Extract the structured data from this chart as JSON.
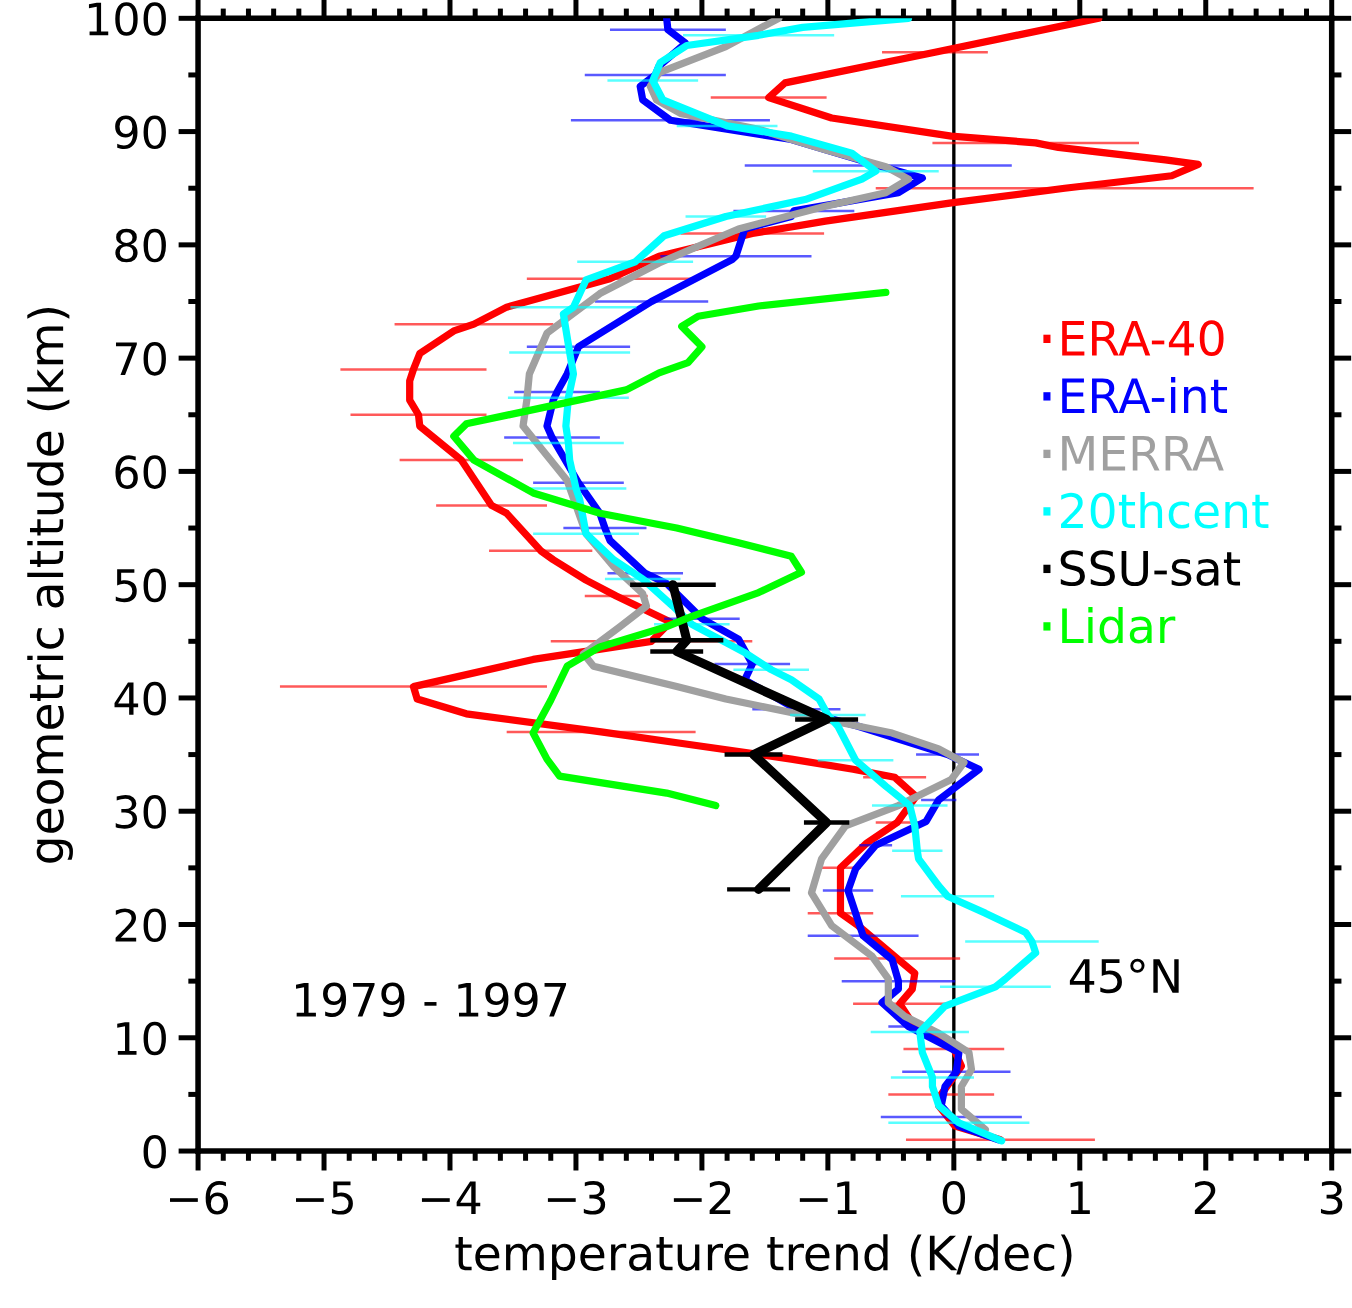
{
  "chart_data": {
    "type": "line",
    "xlabel": "temperature trend (K/dec)",
    "ylabel": "geometric altitude (km)",
    "annotations": [
      "1979 - 1997",
      "45°N"
    ],
    "xlim": [
      -6,
      3
    ],
    "ylim": [
      0,
      100
    ],
    "xticks": [
      -6,
      {
        "value": -5.8,
        "label": null
      },
      {
        "value": -5.6,
        "label": null
      },
      {
        "value": -5.4,
        "label": null
      },
      {
        "value": -5.2,
        "label": null
      },
      -5,
      {
        "value": -4.8,
        "label": null
      },
      {
        "value": -4.6,
        "label": null
      },
      {
        "value": -4.4,
        "label": null
      },
      {
        "value": -4.2,
        "label": null
      },
      -4,
      {
        "value": -3.8,
        "label": null
      },
      {
        "value": -3.6,
        "label": null
      },
      {
        "value": -3.4,
        "label": null
      },
      {
        "value": -3.2,
        "label": null
      },
      -3,
      {
        "value": -2.8,
        "label": null
      },
      {
        "value": -2.6,
        "label": null
      },
      {
        "value": -2.4,
        "label": null
      },
      {
        "value": -2.2,
        "label": null
      },
      -2,
      {
        "value": -1.8,
        "label": null
      },
      {
        "value": -1.6,
        "label": null
      },
      {
        "value": -1.4,
        "label": null
      },
      {
        "value": -1.2,
        "label": null
      },
      -1,
      {
        "value": -0.8,
        "label": null
      },
      {
        "value": -0.6,
        "label": null
      },
      {
        "value": -0.4,
        "label": null
      },
      {
        "value": -0.2,
        "label": null
      },
      0,
      {
        "value": 0.2,
        "label": null
      },
      {
        "value": 0.4,
        "label": null
      },
      {
        "value": 0.6,
        "label": null
      },
      {
        "value": 0.8,
        "label": null
      },
      1,
      {
        "value": 1.2,
        "label": null
      },
      {
        "value": 1.4,
        "label": null
      },
      {
        "value": 1.6,
        "label": null
      },
      {
        "value": 1.8,
        "label": null
      },
      2,
      {
        "value": 2.2,
        "label": null
      },
      {
        "value": 2.4,
        "label": null
      },
      {
        "value": 2.6,
        "label": null
      },
      {
        "value": 2.8,
        "label": null
      },
      3
    ],
    "yticks": [
      0,
      {
        "value": 5,
        "label": null
      },
      10,
      {
        "value": 15,
        "label": null
      },
      20,
      {
        "value": 25,
        "label": null
      },
      30,
      {
        "value": 35,
        "label": null
      },
      40,
      {
        "value": 45,
        "label": null
      },
      50,
      {
        "value": 55,
        "label": null
      },
      60,
      {
        "value": 65,
        "label": null
      },
      70,
      {
        "value": 75,
        "label": null
      },
      80,
      {
        "value": 85,
        "label": null
      },
      90,
      {
        "value": 95,
        "label": null
      },
      100
    ],
    "ref_lines": [
      {
        "axis": "x",
        "value": 0,
        "color": "#000000"
      }
    ],
    "legend": "right",
    "series": [
      {
        "name": "ERA-40",
        "color": "#ff0000",
        "x": [
          0.37,
          0.01,
          -0.12,
          -0.1,
          0.06,
          0.0,
          -0.33,
          -0.43,
          -0.33,
          -0.31,
          -0.45,
          -0.76,
          -0.9,
          -0.9,
          -0.69,
          -0.45,
          -0.3,
          -0.47,
          -0.8,
          -1.29,
          -2.17,
          -2.8,
          -3.87,
          -4.26,
          -4.29,
          -3.34,
          -2.4,
          -2.25,
          -2.68,
          -2.92,
          -3.18,
          -3.28,
          -3.55,
          -3.67,
          -3.91,
          -4.24,
          -4.25,
          -4.32,
          -4.32,
          -4.29,
          -4.24,
          -3.97,
          -3.81,
          -3.55,
          -2.73,
          -2.34,
          -1.6,
          -1.02,
          -0.02,
          0.88,
          1.73,
          1.94,
          1.68,
          0.83,
          0.65,
          -0.02,
          -0.97,
          -1.47,
          -1.34,
          -0.15,
          1.15
        ],
        "values": [
          1,
          2.2,
          4,
          5,
          7.5,
          9,
          11.3,
          13,
          14.3,
          15.7,
          17,
          19.9,
          21,
          25,
          27.2,
          29,
          31.3,
          33,
          33.7,
          34.6,
          36,
          37,
          38.6,
          39.9,
          41,
          43.4,
          45,
          46.7,
          49,
          50.4,
          52.2,
          53,
          56.3,
          57,
          61,
          64,
          65,
          66.3,
          68,
          69,
          70.4,
          72.4,
          73,
          74.5,
          77,
          79,
          81,
          82.1,
          83.7,
          85,
          86.1,
          87.1,
          87.5,
          88.6,
          89,
          89.6,
          91.2,
          93,
          94.3,
          97,
          100
        ],
        "xerrors": [
          0.75,
          null,
          null,
          0.42,
          null,
          0.4,
          null,
          0.37,
          null,
          null,
          0.5,
          null,
          0.26,
          0.16,
          null,
          0.17,
          null,
          0.25,
          null,
          null,
          null,
          0.75,
          null,
          null,
          1.06,
          null,
          0.8,
          null,
          0.25,
          null,
          null,
          0.41,
          null,
          0.44,
          0.49,
          null,
          0.54,
          null,
          null,
          0.58,
          null,
          null,
          0.63,
          null,
          0.66,
          null,
          0.57,
          null,
          null,
          1.5,
          null,
          null,
          null,
          null,
          0.82,
          null,
          null,
          0.46,
          null,
          0.42,
          null
        ]
      },
      {
        "name": "ERA-int",
        "color": "#0000ff",
        "x": [
          0.35,
          0.04,
          -0.02,
          -0.1,
          -0.07,
          0.02,
          0.04,
          -0.36,
          -0.57,
          -0.44,
          -0.44,
          -0.49,
          -0.72,
          -0.84,
          -0.78,
          -0.62,
          -0.22,
          -0.12,
          0.2,
          -0.05,
          -0.76,
          -1.25,
          -1.66,
          -1.6,
          -1.71,
          -2.0,
          -2.28,
          -2.45,
          -2.73,
          -2.77,
          -2.81,
          -2.98,
          -3.19,
          -3.23,
          -3.18,
          -3.15,
          -3.07,
          -2.98,
          -2.4,
          -1.76,
          -1.73,
          -1.66,
          -1.29,
          -1.27,
          -0.44,
          -0.25,
          -0.6,
          -1.29,
          -2.25,
          -2.47,
          -2.49,
          -2.37,
          -2.34,
          -2.13,
          -2.27,
          -2.28
        ],
        "values": [
          1,
          2.2,
          3,
          4,
          5.7,
          7,
          8.7,
          11,
          13.1,
          14.3,
          15,
          16.9,
          19,
          23,
          24.9,
          27,
          29.1,
          31,
          33.7,
          35,
          37.5,
          39,
          41.6,
          43,
          45.2,
          47,
          50.1,
          51,
          53.9,
          55,
          56.3,
          59,
          63,
          64,
          66.3,
          67,
          68.6,
          71,
          75,
          78.7,
          79,
          81.4,
          82.5,
          83,
          84.6,
          85.9,
          87,
          89.3,
          91,
          92.8,
          94,
          95,
          95.8,
          97.8,
          99,
          100
        ],
        "xerrors": [
          null,
          null,
          0.56,
          null,
          null,
          0.43,
          null,
          0.16,
          null,
          null,
          0.45,
          null,
          0.44,
          0.2,
          null,
          0.13,
          null,
          0.14,
          null,
          0.25,
          null,
          0.35,
          null,
          0.3,
          null,
          0.3,
          null,
          0.3,
          null,
          0.33,
          null,
          0.36,
          0.38,
          null,
          null,
          0.34,
          null,
          0.41,
          0.45,
          null,
          0.6,
          null,
          null,
          0.48,
          null,
          null,
          1.06,
          null,
          0.79,
          null,
          null,
          0.56,
          null,
          null,
          0.46,
          null
        ]
      },
      {
        "name": "MERRA",
        "color": "#a0a0a0",
        "x": [
          0.25,
          0.06,
          0.06,
          0.14,
          0.12,
          -0.12,
          -0.39,
          -0.52,
          -0.52,
          -0.65,
          -0.97,
          -1.13,
          -1.05,
          -0.86,
          -0.44,
          -0.02,
          0.08,
          -0.12,
          -0.49,
          -1.02,
          -1.81,
          -2.2,
          -2.86,
          -2.94,
          -2.65,
          -2.44,
          -2.47,
          -2.7,
          -2.92,
          -3.07,
          -3.42,
          -3.39,
          -3.37,
          -3.23,
          -2.81,
          -2.34,
          -1.71,
          -1.02,
          -0.54,
          -0.36,
          -0.54,
          -1.02,
          -1.55,
          -2.17,
          -2.36,
          -2.41,
          -2.34,
          -1.81,
          -1.39
        ],
        "values": [
          1.9,
          3.7,
          5.7,
          7.2,
          8.7,
          10.4,
          11.9,
          13.1,
          15.2,
          17.2,
          19.9,
          22.8,
          25.8,
          28.7,
          30.5,
          32.8,
          34.3,
          35.5,
          36.9,
          38.1,
          39.9,
          41,
          42.8,
          43.9,
          46.3,
          48.1,
          49.2,
          51.6,
          54.5,
          59.2,
          64,
          66.3,
          68.6,
          72.2,
          75.7,
          78.4,
          81.4,
          83.4,
          84.6,
          85.8,
          86.9,
          88.4,
          90.2,
          91.6,
          92.8,
          94,
          95.2,
          97.5,
          100
        ]
      },
      {
        "name": "20thcent",
        "color": "#00ffff",
        "x": [
          0.38,
          0.04,
          -0.12,
          -0.17,
          -0.17,
          -0.25,
          -0.27,
          -0.07,
          0.33,
          0.41,
          0.65,
          0.62,
          0.57,
          0.25,
          -0.05,
          -0.12,
          -0.28,
          -0.29,
          -0.31,
          -0.35,
          -0.54,
          -0.78,
          -0.92,
          -1.0,
          -1.07,
          -1.29,
          -1.45,
          -1.66,
          -2.08,
          -2.23,
          -2.47,
          -2.7,
          -2.92,
          -2.97,
          -3.0,
          -3.05,
          -3.06,
          -3.08,
          -3.06,
          -3.02,
          -3.05,
          -3.1,
          -3.02,
          -2.92,
          -2.53,
          -2.3,
          -1.81,
          -1.18,
          -0.73,
          -0.62,
          -0.81,
          -1.29,
          -1.8,
          -2.31,
          -2.39,
          -2.33,
          -2.12,
          -1.55,
          -1.2,
          -0.36
        ],
        "values": [
          0.9,
          2.5,
          4,
          5.7,
          6.5,
          8.7,
          10.5,
          12.8,
          14.5,
          15.2,
          17.5,
          18.5,
          19.3,
          21,
          22.5,
          23.4,
          25.8,
          26.5,
          28.7,
          30.5,
          32.2,
          34.5,
          37.5,
          38.5,
          39.9,
          41.6,
          42.5,
          44,
          46.5,
          48.1,
          50.5,
          52.2,
          54.5,
          57.5,
          58.5,
          61,
          62.5,
          64,
          66.5,
          68.6,
          70.5,
          73.9,
          74.5,
          76.9,
          78.5,
          80.8,
          82.5,
          84,
          85.8,
          86.5,
          88.1,
          89.6,
          90.5,
          92.8,
          94.5,
          96.1,
          97.6,
          98.5,
          99.2,
          100
        ],
        "xerrors": [
          null,
          0.56,
          null,
          null,
          0.33,
          null,
          0.39,
          null,
          0.44,
          null,
          null,
          0.53,
          null,
          null,
          0.37,
          null,
          null,
          0.2,
          null,
          0.3,
          null,
          0.3,
          null,
          0.3,
          null,
          null,
          0.3,
          null,
          0.3,
          null,
          0.3,
          null,
          0.42,
          null,
          0.4,
          null,
          0.44,
          null,
          0.48,
          null,
          0.48,
          null,
          0.5,
          null,
          0.46,
          null,
          0.32,
          null,
          null,
          0.5,
          null,
          null,
          0.4,
          null,
          0.36,
          null,
          null,
          0.6,
          null,
          null
        ]
      },
      {
        "name": "SSU-sat",
        "color": "#000000",
        "x": [
          -1.55,
          -1.01,
          -1.59,
          -1.01,
          -2.2,
          -2.12,
          -2.23
        ],
        "values": [
          23.1,
          29,
          35,
          38.1,
          44.1,
          45.1,
          50
        ],
        "xerrors": [
          0.25,
          0.18,
          0.23,
          0.25,
          0.21,
          0.29,
          0.34
        ]
      },
      {
        "name": "Lidar",
        "color": "#00ff00",
        "x": [
          -1.89,
          -2.28,
          -3.13,
          -3.23,
          -3.34,
          -3.2,
          -3.07,
          -2.81,
          -2.28,
          -2.08,
          -1.55,
          -1.21,
          -1.29,
          -1.71,
          -2.2,
          -2.81,
          -3.34,
          -3.81,
          -3.97,
          -3.87,
          -2.6,
          -2.34,
          -2.11,
          -2.0,
          -2.08,
          -2.16,
          -2.03,
          -1.55,
          -0.54
        ],
        "values": [
          30.5,
          31.6,
          33.1,
          34.6,
          36.9,
          39.8,
          42.8,
          44.5,
          46.3,
          47.2,
          49.3,
          51.1,
          52.5,
          53.7,
          55,
          56.3,
          58.1,
          61,
          63.1,
          64.2,
          67.2,
          68.7,
          69.6,
          71,
          71.9,
          72.8,
          73.7,
          74.6,
          75.8
        ]
      }
    ]
  }
}
